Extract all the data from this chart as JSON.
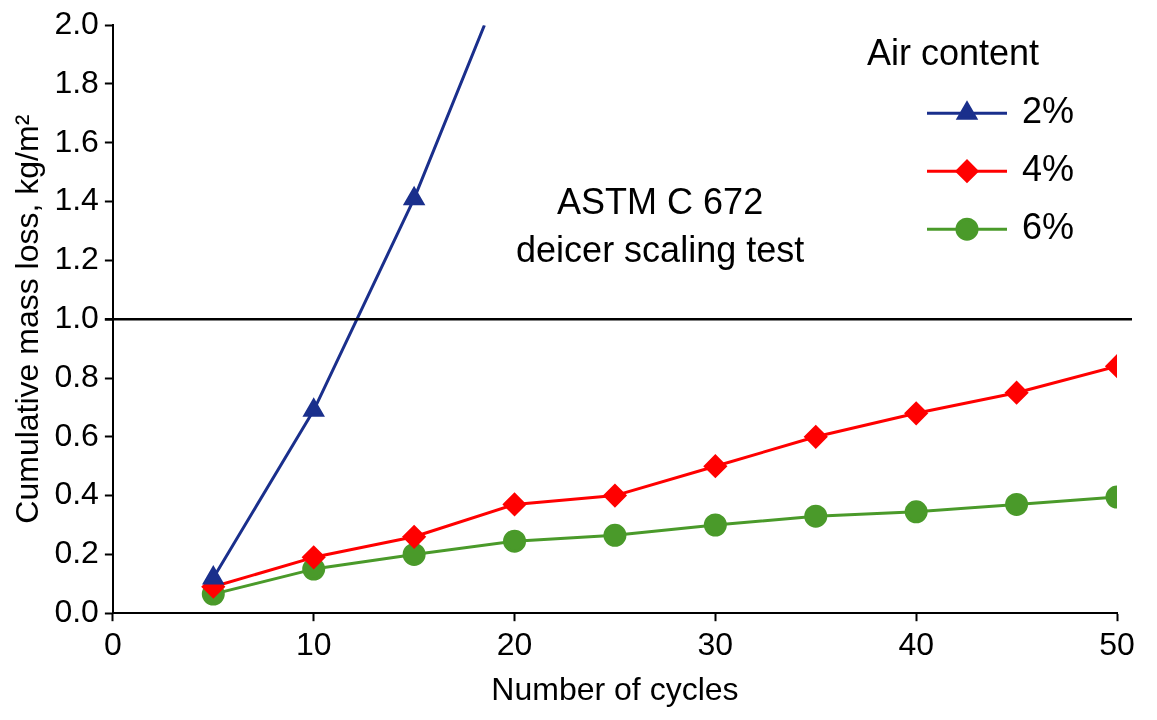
{
  "chart_data": {
    "type": "line",
    "xlabel": "Number of cycles",
    "ylabel": "Cumulative mass loss, kg/m²",
    "legend_title": "Air content",
    "legend": "top right",
    "grid": false,
    "xlim": [
      0,
      50
    ],
    "xticks": [
      0,
      10,
      20,
      30,
      40,
      50
    ],
    "ylim": [
      0,
      2
    ],
    "yticks": [
      {
        "value": 0,
        "label": "0.0"
      },
      {
        "value": 0.2,
        "label": "0.2"
      },
      {
        "value": 0.4,
        "label": "0.4"
      },
      {
        "value": 0.6,
        "label": "0.6"
      },
      {
        "value": 0.8,
        "label": "0.8"
      },
      {
        "value": 1,
        "label": "1.0"
      },
      {
        "value": 1.2,
        "label": "1.2"
      },
      {
        "value": 1.4,
        "label": "1.4"
      },
      {
        "value": 1.6,
        "label": "1.6"
      },
      {
        "value": 1.8,
        "label": "1.8"
      },
      {
        "value": 2,
        "label": "2.0"
      }
    ],
    "ref_lines": [
      {
        "axis": "y",
        "value": 1,
        "color": "#000000"
      }
    ],
    "annotations": [
      "ASTM C 672\ndeicer scaling test"
    ],
    "series": [
      {
        "name": "2%",
        "color": "#1a2f8c",
        "marker": "triangle",
        "x": [
          5,
          10,
          15,
          18.5
        ],
        "values": [
          0.12,
          0.69,
          1.41,
          2.0
        ]
      },
      {
        "name": "4%",
        "color": "#ff0000",
        "marker": "diamond",
        "x": [
          5,
          10,
          15,
          20,
          25,
          30,
          35,
          40,
          45,
          50
        ],
        "values": [
          0.09,
          0.19,
          0.26,
          0.37,
          0.4,
          0.5,
          0.6,
          0.68,
          0.75,
          0.84
        ]
      },
      {
        "name": "6%",
        "color": "#4a9a2a",
        "marker": "circle",
        "x": [
          5,
          10,
          15,
          20,
          25,
          30,
          35,
          40,
          45,
          50
        ],
        "values": [
          0.065,
          0.15,
          0.2,
          0.245,
          0.265,
          0.3,
          0.33,
          0.345,
          0.37,
          0.395
        ]
      }
    ]
  }
}
